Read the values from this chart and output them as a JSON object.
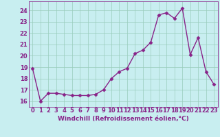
{
  "x": [
    0,
    1,
    2,
    3,
    4,
    5,
    6,
    7,
    8,
    9,
    10,
    11,
    12,
    13,
    14,
    15,
    16,
    17,
    18,
    19,
    20,
    21,
    22,
    23
  ],
  "y": [
    18.9,
    16.0,
    16.7,
    16.7,
    16.6,
    16.5,
    16.5,
    16.5,
    16.6,
    17.0,
    18.0,
    18.6,
    18.9,
    20.2,
    20.5,
    21.2,
    23.6,
    23.8,
    23.3,
    24.2,
    20.1,
    21.6,
    18.6,
    17.5
  ],
  "line_color": "#882288",
  "marker": "D",
  "markersize": 2.5,
  "linewidth": 1.0,
  "bg_color": "#c8eef0",
  "grid_color": "#99ccbb",
  "xlabel": "Windchill (Refroidissement éolien,°C)",
  "ylim": [
    15.5,
    24.8
  ],
  "xlim": [
    -0.5,
    23.5
  ],
  "yticks": [
    16,
    17,
    18,
    19,
    20,
    21,
    22,
    23,
    24
  ],
  "xticks": [
    0,
    1,
    2,
    3,
    4,
    5,
    6,
    7,
    8,
    9,
    10,
    11,
    12,
    13,
    14,
    15,
    16,
    17,
    18,
    19,
    20,
    21,
    22,
    23
  ],
  "xlabel_fontsize": 6.5,
  "tick_fontsize": 6,
  "label_color": "#882288"
}
